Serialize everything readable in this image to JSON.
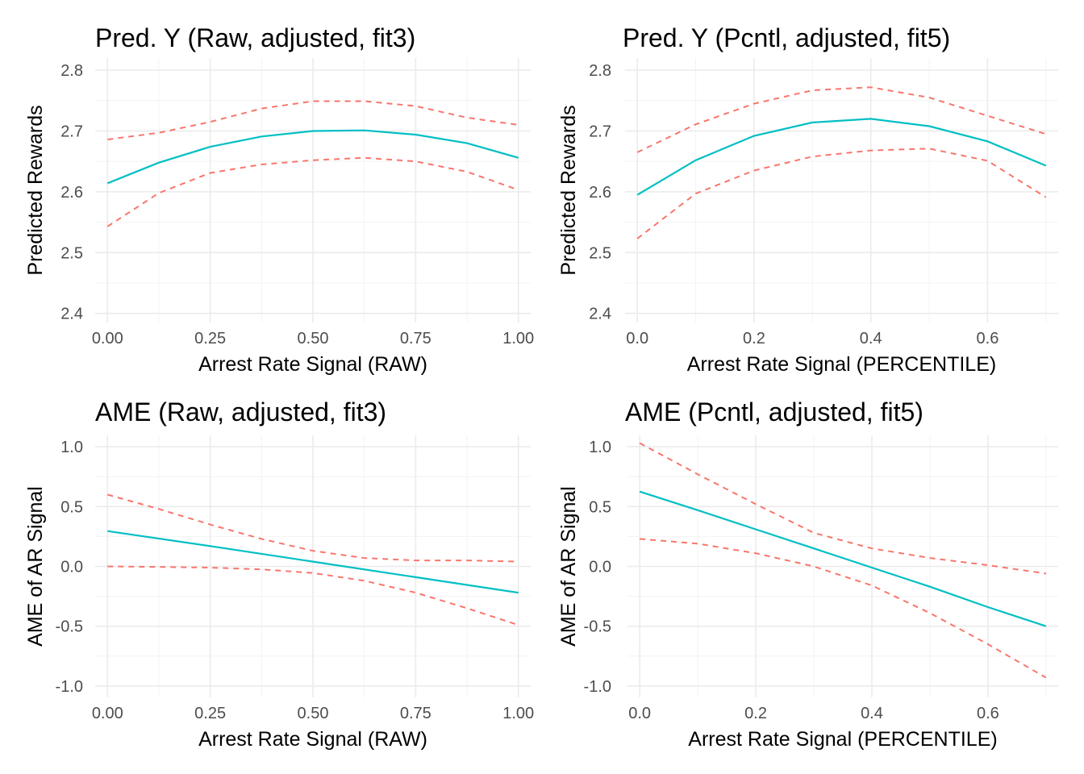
{
  "colors": {
    "fit": "#00bfc4",
    "ci": "#f8766d",
    "grid": "#ebebeb"
  },
  "chart_data": [
    {
      "type": "line",
      "title": "Pred. Y (Raw, adjusted, fit3)",
      "xlabel": "Arrest Rate Signal (RAW)",
      "ylabel": "Predicted Rewards",
      "xlim": [
        -0.03,
        1.03
      ],
      "ylim": [
        2.385,
        2.82
      ],
      "xticks": [
        0,
        0.25,
        0.5,
        0.75,
        1.0
      ],
      "xtick_labels": [
        "0.00",
        "0.25",
        "0.50",
        "0.75",
        "1.00"
      ],
      "yticks": [
        2.4,
        2.5,
        2.6,
        2.7,
        2.8
      ],
      "ytick_labels": [
        "2.4",
        "2.5",
        "2.6",
        "2.7",
        "2.8"
      ],
      "series": [
        {
          "role": "fit",
          "x": [
            0,
            0.125,
            0.25,
            0.375,
            0.5,
            0.625,
            0.75,
            0.875,
            1.0
          ],
          "values": [
            2.614,
            2.648,
            2.674,
            2.691,
            2.7,
            2.701,
            2.694,
            2.68,
            2.656
          ]
        },
        {
          "role": "upper",
          "x": [
            0,
            0.125,
            0.25,
            0.375,
            0.5,
            0.625,
            0.75,
            0.875,
            1.0
          ],
          "values": [
            2.686,
            2.697,
            2.715,
            2.737,
            2.749,
            2.749,
            2.741,
            2.722,
            2.71
          ]
        },
        {
          "role": "lower",
          "x": [
            0,
            0.125,
            0.25,
            0.375,
            0.5,
            0.625,
            0.75,
            0.875,
            1.0
          ],
          "values": [
            2.543,
            2.598,
            2.631,
            2.645,
            2.652,
            2.656,
            2.65,
            2.633,
            2.603
          ]
        }
      ]
    },
    {
      "type": "line",
      "title": "Pred. Y (Pcntl, adjusted, fit5)",
      "xlabel": "Arrest Rate Signal (PERCENTILE)",
      "ylabel": "Predicted Rewards",
      "xlim": [
        -0.021,
        0.721
      ],
      "ylim": [
        2.385,
        2.82
      ],
      "xticks": [
        0,
        0.2,
        0.4,
        0.6
      ],
      "xtick_labels": [
        "0.0",
        "0.2",
        "0.4",
        "0.6"
      ],
      "yticks": [
        2.4,
        2.5,
        2.6,
        2.7,
        2.8
      ],
      "ytick_labels": [
        "2.4",
        "2.5",
        "2.6",
        "2.7",
        "2.8"
      ],
      "series": [
        {
          "role": "fit",
          "x": [
            0,
            0.1,
            0.2,
            0.3,
            0.4,
            0.5,
            0.6,
            0.7
          ],
          "values": [
            2.595,
            2.652,
            2.692,
            2.714,
            2.72,
            2.708,
            2.683,
            2.643
          ]
        },
        {
          "role": "upper",
          "x": [
            0,
            0.1,
            0.2,
            0.3,
            0.4,
            0.5,
            0.6,
            0.7
          ],
          "values": [
            2.665,
            2.711,
            2.745,
            2.767,
            2.772,
            2.755,
            2.725,
            2.695
          ]
        },
        {
          "role": "lower",
          "x": [
            0,
            0.1,
            0.2,
            0.3,
            0.4,
            0.5,
            0.6,
            0.7
          ],
          "values": [
            2.523,
            2.597,
            2.635,
            2.658,
            2.668,
            2.671,
            2.651,
            2.591
          ]
        }
      ]
    },
    {
      "type": "line",
      "title": "AME (Raw, adjusted, fit3)",
      "xlabel": "Arrest Rate Signal (RAW)",
      "ylabel": "AME of AR Signal",
      "xlim": [
        -0.03,
        1.03
      ],
      "ylim": [
        -1.095,
        1.095
      ],
      "xticks": [
        0,
        0.25,
        0.5,
        0.75,
        1.0
      ],
      "xtick_labels": [
        "0.00",
        "0.25",
        "0.50",
        "0.75",
        "1.00"
      ],
      "yticks": [
        -1.0,
        -0.5,
        0.0,
        0.5,
        1.0
      ],
      "ytick_labels": [
        "-1.0",
        "-0.5",
        "0.0",
        "0.5",
        "1.0"
      ],
      "series": [
        {
          "role": "fit",
          "x": [
            0,
            0.25,
            0.5,
            0.75,
            1.0
          ],
          "values": [
            0.295,
            0.17,
            0.04,
            -0.09,
            -0.22
          ]
        },
        {
          "role": "upper",
          "x": [
            0,
            0.125,
            0.25,
            0.375,
            0.5,
            0.625,
            0.75,
            0.875,
            1.0
          ],
          "values": [
            0.6,
            0.48,
            0.35,
            0.23,
            0.13,
            0.07,
            0.05,
            0.05,
            0.04
          ]
        },
        {
          "role": "lower",
          "x": [
            0,
            0.125,
            0.25,
            0.375,
            0.5,
            0.625,
            0.75,
            0.875,
            1.0
          ],
          "values": [
            0.0,
            -0.005,
            -0.01,
            -0.025,
            -0.055,
            -0.12,
            -0.22,
            -0.35,
            -0.49
          ]
        }
      ]
    },
    {
      "type": "line",
      "title": "AME (Pcntl, adjusted, fit5)",
      "xlabel": "Arrest Rate Signal (PERCENTILE)",
      "ylabel": "AME of AR Signal",
      "xlim": [
        -0.021,
        0.721
      ],
      "ylim": [
        -1.095,
        1.095
      ],
      "xticks": [
        0,
        0.2,
        0.4,
        0.6
      ],
      "xtick_labels": [
        "0.0",
        "0.2",
        "0.4",
        "0.6"
      ],
      "yticks": [
        -1.0,
        -0.5,
        0.0,
        0.5,
        1.0
      ],
      "ytick_labels": [
        "-1.0",
        "-0.5",
        "0.0",
        "0.5",
        "1.0"
      ],
      "series": [
        {
          "role": "fit",
          "x": [
            0,
            0.1,
            0.2,
            0.3,
            0.4,
            0.5,
            0.6,
            0.7
          ],
          "values": [
            0.625,
            0.47,
            0.31,
            0.15,
            -0.01,
            -0.17,
            -0.34,
            -0.5
          ]
        },
        {
          "role": "upper",
          "x": [
            0,
            0.1,
            0.2,
            0.3,
            0.4,
            0.5,
            0.6,
            0.7
          ],
          "values": [
            1.03,
            0.77,
            0.52,
            0.28,
            0.15,
            0.07,
            0.01,
            -0.06
          ]
        },
        {
          "role": "lower",
          "x": [
            0,
            0.1,
            0.2,
            0.3,
            0.4,
            0.5,
            0.6,
            0.7
          ],
          "values": [
            0.23,
            0.19,
            0.11,
            0.0,
            -0.16,
            -0.39,
            -0.65,
            -0.93
          ]
        }
      ]
    }
  ]
}
